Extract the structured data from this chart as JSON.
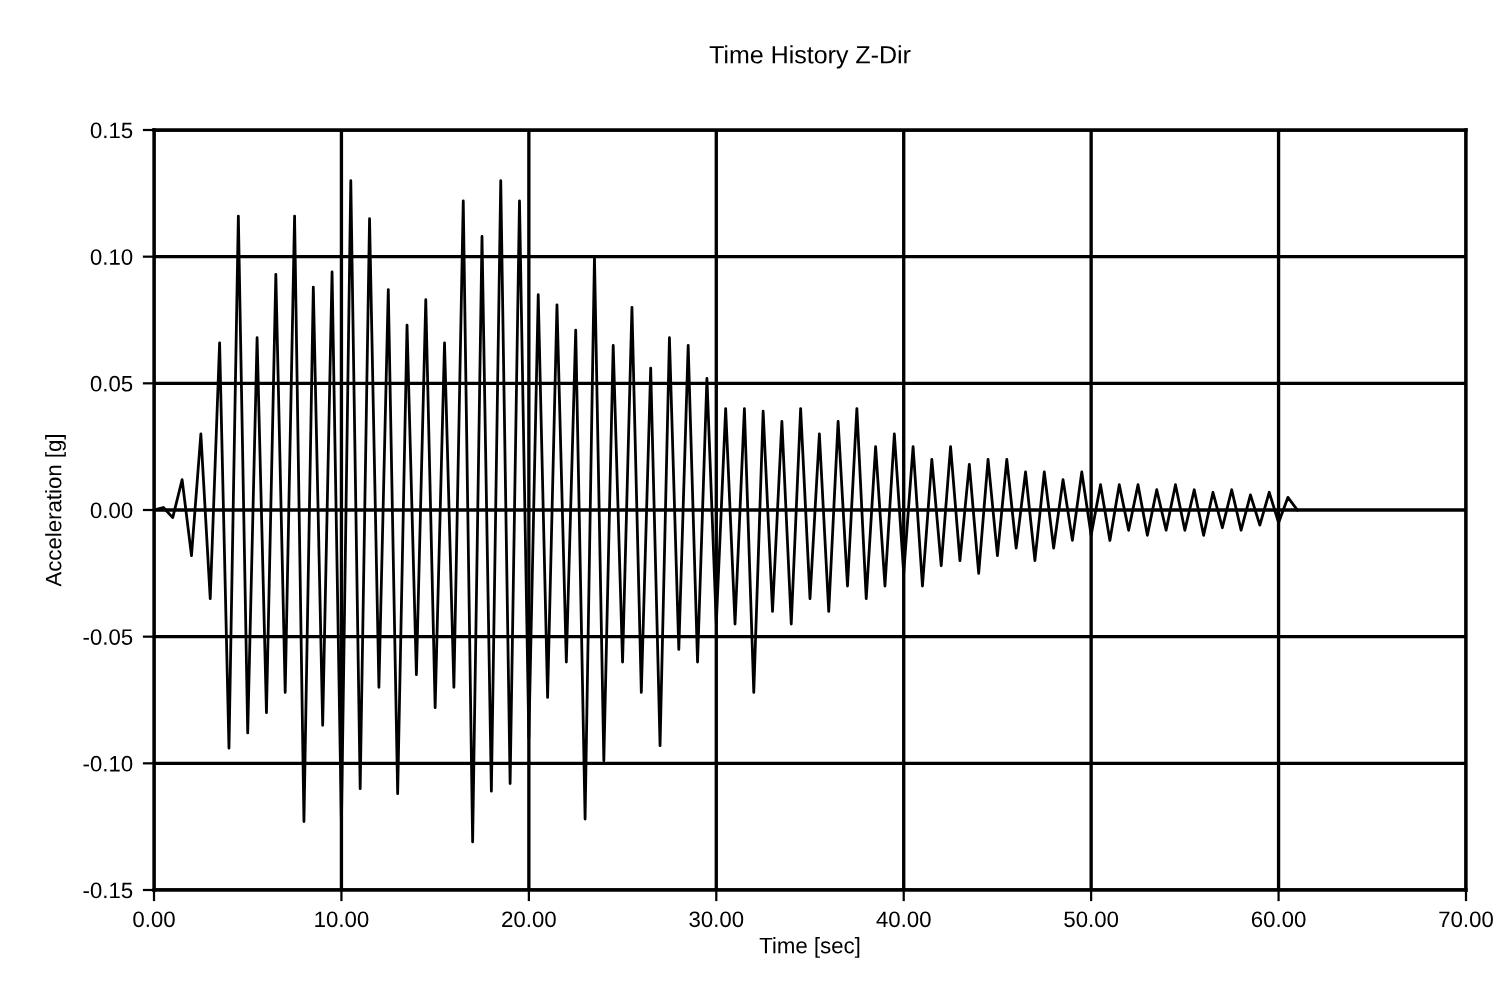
{
  "chart_data": {
    "type": "line",
    "title": "Time History Z-Dir",
    "xlabel": "Time [sec]",
    "ylabel": "Acceleration [g]",
    "x": [
      0.0,
      0.5,
      1.0,
      1.5,
      2.0,
      2.5,
      3.0,
      3.5,
      4.0,
      4.5,
      5.0,
      5.5,
      6.0,
      6.5,
      7.0,
      7.5,
      8.0,
      8.5,
      9.0,
      9.5,
      10.0,
      10.5,
      11.0,
      11.5,
      12.0,
      12.5,
      13.0,
      13.5,
      14.0,
      14.5,
      15.0,
      15.5,
      16.0,
      16.5,
      17.0,
      17.5,
      18.0,
      18.5,
      19.0,
      19.5,
      20.0,
      20.5,
      21.0,
      21.5,
      22.0,
      22.5,
      23.0,
      23.5,
      24.0,
      24.5,
      25.0,
      25.5,
      26.0,
      26.5,
      27.0,
      27.5,
      28.0,
      28.5,
      29.0,
      29.5,
      30.0,
      30.5,
      31.0,
      31.5,
      32.0,
      32.5,
      33.0,
      33.5,
      34.0,
      34.5,
      35.0,
      35.5,
      36.0,
      36.5,
      37.0,
      37.5,
      38.0,
      38.5,
      39.0,
      39.5,
      40.0,
      40.5,
      41.0,
      41.5,
      42.0,
      42.5,
      43.0,
      43.5,
      44.0,
      44.5,
      45.0,
      45.5,
      46.0,
      46.5,
      47.0,
      47.5,
      48.0,
      48.5,
      49.0,
      49.5,
      50.0,
      50.5,
      51.0,
      51.5,
      52.0,
      52.5,
      53.0,
      53.5,
      54.0,
      54.5,
      55.0,
      55.5,
      56.0,
      56.5,
      57.0,
      57.5,
      58.0,
      58.5,
      59.0,
      59.5,
      60.0,
      60.5,
      61.0
    ],
    "series": [
      {
        "color": "#000000",
        "values": [
          0.0,
          0.001,
          -0.003,
          0.012,
          -0.018,
          0.03,
          -0.035,
          0.066,
          -0.094,
          0.116,
          -0.088,
          0.068,
          -0.08,
          0.093,
          -0.072,
          0.116,
          -0.123,
          0.088,
          -0.085,
          0.094,
          -0.124,
          0.13,
          -0.11,
          0.115,
          -0.07,
          0.087,
          -0.112,
          0.073,
          -0.065,
          0.083,
          -0.078,
          0.066,
          -0.07,
          0.122,
          -0.131,
          0.108,
          -0.111,
          0.13,
          -0.108,
          0.122,
          -0.09,
          0.085,
          -0.074,
          0.081,
          -0.06,
          0.071,
          -0.122,
          0.1,
          -0.099,
          0.065,
          -0.06,
          0.08,
          -0.072,
          0.056,
          -0.093,
          0.068,
          -0.055,
          0.065,
          -0.06,
          0.052,
          -0.045,
          0.04,
          -0.045,
          0.04,
          -0.072,
          0.039,
          -0.04,
          0.035,
          -0.045,
          0.04,
          -0.035,
          0.03,
          -0.04,
          0.035,
          -0.03,
          0.04,
          -0.035,
          0.025,
          -0.03,
          0.03,
          -0.025,
          0.025,
          -0.03,
          0.02,
          -0.022,
          0.025,
          -0.02,
          0.018,
          -0.025,
          0.02,
          -0.018,
          0.02,
          -0.015,
          0.015,
          -0.02,
          0.015,
          -0.015,
          0.012,
          -0.012,
          0.015,
          -0.01,
          0.01,
          -0.012,
          0.01,
          -0.008,
          0.01,
          -0.01,
          0.008,
          -0.008,
          0.01,
          -0.008,
          0.008,
          -0.01,
          0.007,
          -0.007,
          0.008,
          -0.008,
          0.006,
          -0.006,
          0.007,
          -0.005,
          0.005,
          0.0
        ]
      }
    ],
    "xlim": [
      0,
      70
    ],
    "xticks": [
      {
        "value": 0,
        "label": "0.00"
      },
      {
        "value": 10,
        "label": "10.00"
      },
      {
        "value": 20,
        "label": "20.00"
      },
      {
        "value": 30,
        "label": "30.00"
      },
      {
        "value": 40,
        "label": "40.00"
      },
      {
        "value": 50,
        "label": "50.00"
      },
      {
        "value": 60,
        "label": "60.00"
      },
      {
        "value": 70,
        "label": "70.00"
      }
    ],
    "ylim": [
      -0.15,
      0.15
    ],
    "yticks": [
      {
        "value": -0.15,
        "label": "-0.15"
      },
      {
        "value": -0.1,
        "label": "-0.10"
      },
      {
        "value": -0.05,
        "label": "-0.05"
      },
      {
        "value": 0,
        "label": "0.00"
      },
      {
        "value": 0.05,
        "label": "0.05"
      },
      {
        "value": 0.1,
        "label": "0.10"
      },
      {
        "value": 0.15,
        "label": "0.15"
      }
    ],
    "grid": true,
    "legend": false,
    "marker": "none",
    "line_style": "solid"
  }
}
